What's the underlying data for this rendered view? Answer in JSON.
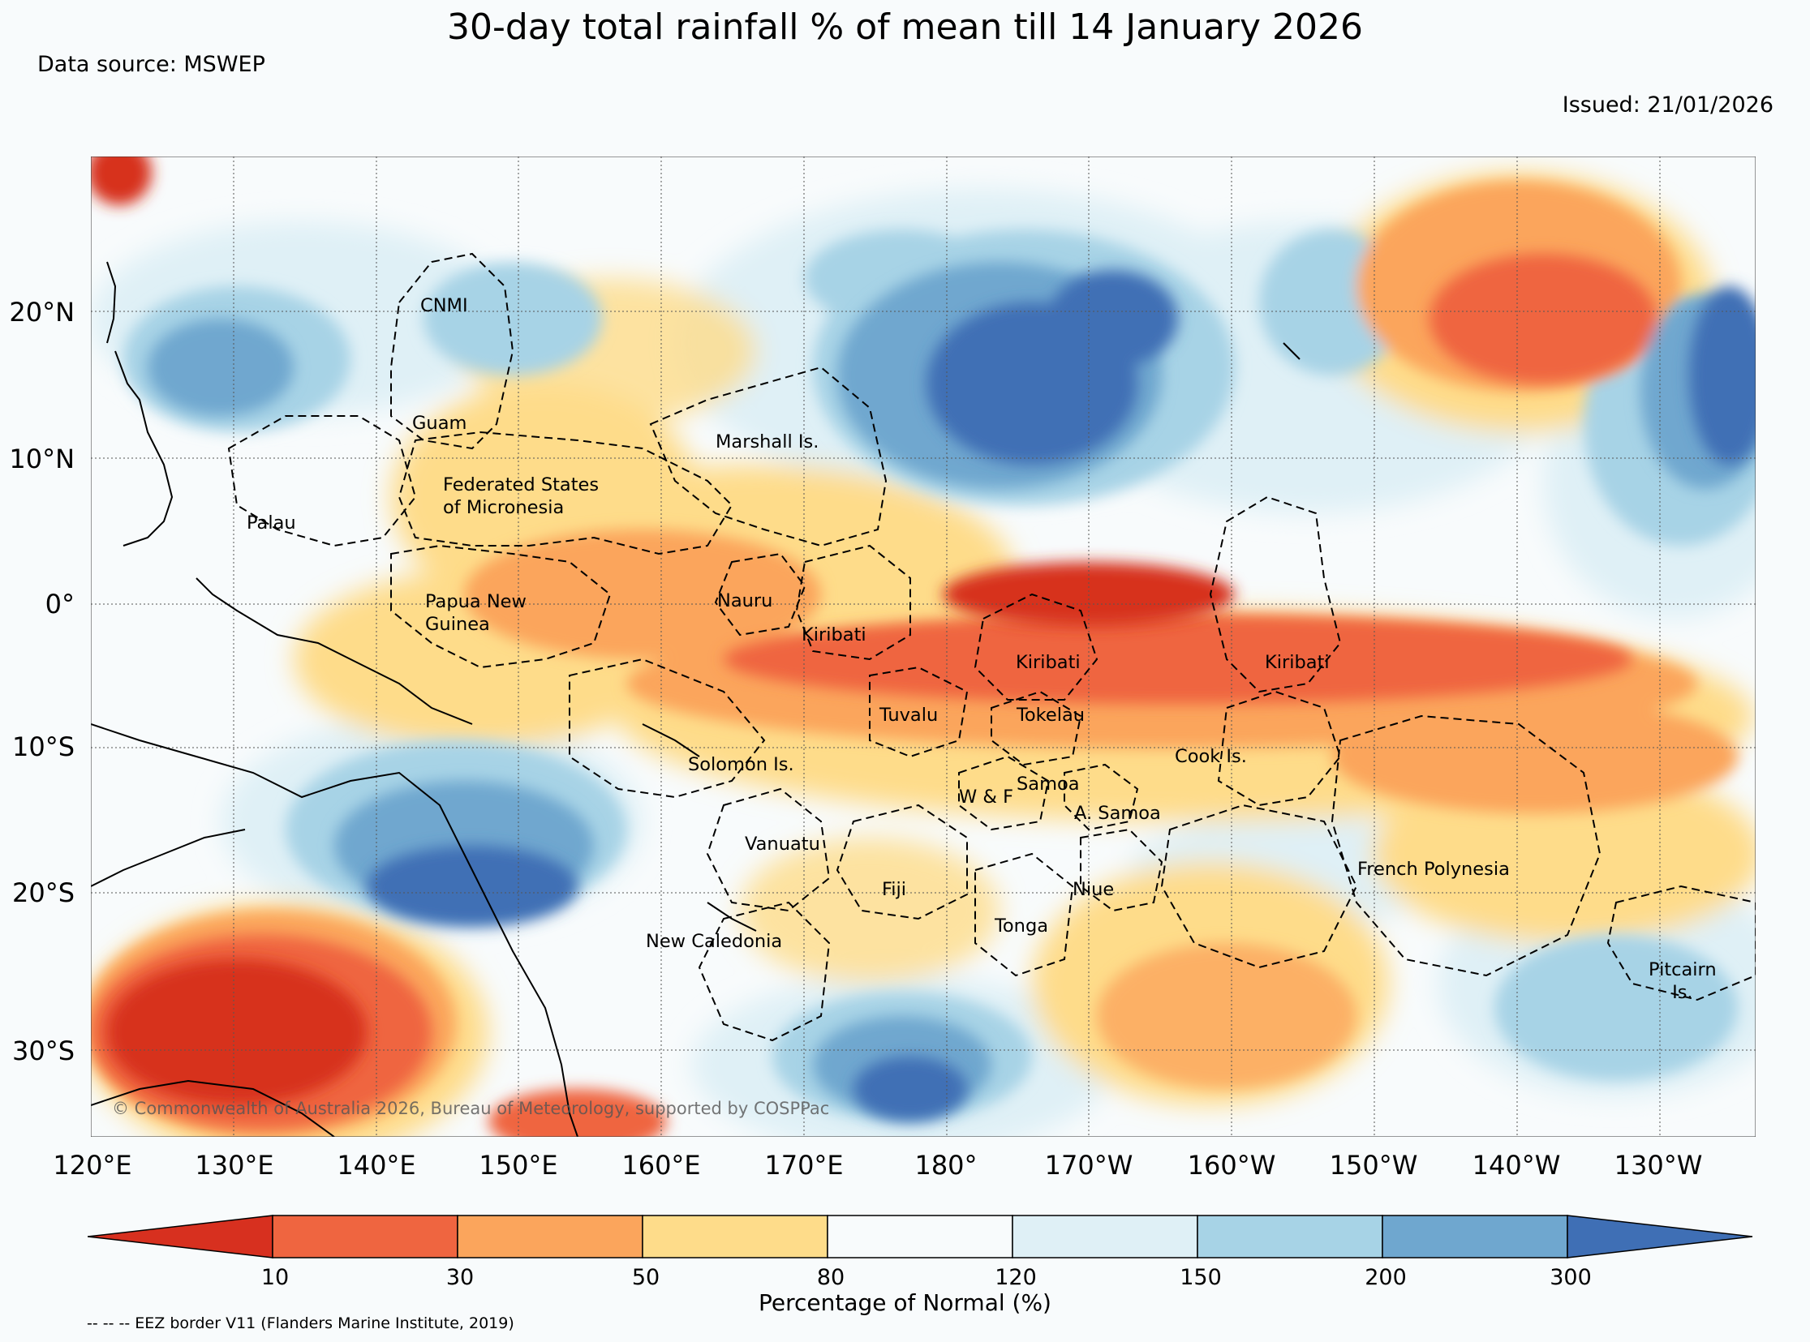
{
  "title": "30-day total rainfall % of mean till 14 January 2026",
  "data_source": "Data source: MSWEP",
  "issued": "Issued: 21/01/2026",
  "copyright": "© Commonwealth of Australia 2026, Bureau of Meteorology, supported by COSPPac",
  "lat_labels": [
    "20°N",
    "10°N",
    "0°",
    "10°S",
    "20°S",
    "30°S"
  ],
  "lon_labels": [
    "120°E",
    "130°E",
    "140°E",
    "150°E",
    "160°E",
    "170°E",
    "180°",
    "170°W",
    "160°W",
    "150°W",
    "140°W",
    "130°W"
  ],
  "colorbar": {
    "ticks": [
      "10",
      "30",
      "50",
      "80",
      "120",
      "150",
      "200",
      "300"
    ],
    "colors": [
      "#d7301f",
      "#ef6540",
      "#fba55c",
      "#fedc8a",
      "#f8fbfc",
      "#dff0f6",
      "#a7d3e6",
      "#6fa7cf",
      "#3f6fb5"
    ],
    "label": "Percentage of Normal (%)"
  },
  "eez_note": "-- -- -- EEZ border V11 (Flanders Marine Institute, 2019)",
  "regions": {
    "cnmi": "CNMI",
    "guam": "Guam",
    "marshall": "Marshall Is.",
    "fsm1": "Federated States",
    "fsm2": "of Micronesia",
    "palau": "Palau",
    "png1": "Papua New",
    "png2": "Guinea",
    "nauru": "Nauru",
    "kiribati_w": "Kiribati",
    "kiribati_c": "Kiribati",
    "kiribati_e": "Kiribati",
    "tuvalu": "Tuvalu",
    "tokelau": "Tokelau",
    "solomon": "Solomon Is.",
    "cook": "Cook Is.",
    "samoa": "Samoa",
    "wf": "W & F",
    "asamoa": "A. Samoa",
    "vanuatu": "Vanuatu",
    "fiji": "Fiji",
    "niue": "Niue",
    "frpoly": "French Polynesia",
    "tonga": "Tonga",
    "newcal": "New Caledonia",
    "pitcairn1": "Pitcairn",
    "pitcairn2": "Is."
  }
}
